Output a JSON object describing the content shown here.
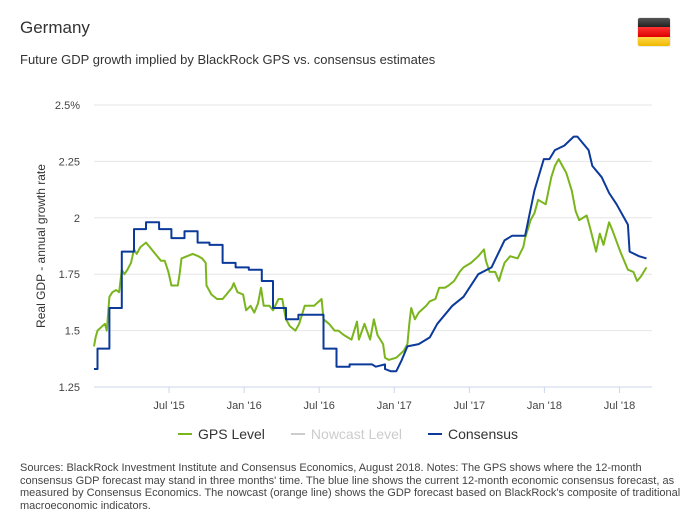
{
  "header": {
    "title": "Germany",
    "subtitle": "Future GDP growth implied by BlackRock GPS vs. consensus estimates",
    "flag_icon": "germany-flag-icon"
  },
  "colors": {
    "gps": "#7ab51d",
    "nowcast": "#cccccc",
    "consensus": "#0b3a9a",
    "grid": "#e6e6e6"
  },
  "chart_data": {
    "type": "line",
    "title": "Future GDP growth implied by BlackRock GPS vs. consensus estimates",
    "xlabel": "",
    "ylabel": "Real GDP - annual growth rate",
    "x_unit": "months since Jan 2015",
    "xlim": [
      0,
      44.6
    ],
    "ylim": [
      1.25,
      2.5
    ],
    "yticks": [
      {
        "v": 1.25,
        "label": "1.25"
      },
      {
        "v": 1.5,
        "label": "1.5"
      },
      {
        "v": 1.75,
        "label": "1.75"
      },
      {
        "v": 2,
        "label": "2"
      },
      {
        "v": 2.25,
        "label": "2.25"
      },
      {
        "v": 2.5,
        "label": "2.5%"
      }
    ],
    "xticks": [
      {
        "v": 6,
        "label": "Jul '15"
      },
      {
        "v": 12,
        "label": "Jan '16"
      },
      {
        "v": 18,
        "label": "Jul '16"
      },
      {
        "v": 24,
        "label": "Jan '17"
      },
      {
        "v": 30,
        "label": "Jul '17"
      },
      {
        "v": 36,
        "label": "Jan '18"
      },
      {
        "v": 42,
        "label": "Jul '18"
      }
    ],
    "grid": true,
    "legend_position": "bottom",
    "series": [
      {
        "name": "GPS Level",
        "key": "gps",
        "visible": true,
        "points": [
          [
            0,
            1.43
          ],
          [
            0.13,
            1.47
          ],
          [
            0.28,
            1.5
          ],
          [
            0.87,
            1.53
          ],
          [
            1.02,
            1.5
          ],
          [
            1.23,
            1.65
          ],
          [
            1.47,
            1.67
          ],
          [
            1.77,
            1.68
          ],
          [
            2.01,
            1.67
          ],
          [
            2.22,
            1.77
          ],
          [
            2.43,
            1.75
          ],
          [
            2.67,
            1.77
          ],
          [
            2.96,
            1.8
          ],
          [
            3.2,
            1.86
          ],
          [
            3.41,
            1.84
          ],
          [
            3.71,
            1.87
          ],
          [
            4.16,
            1.89
          ],
          [
            4.46,
            1.87
          ],
          [
            4.9,
            1.84
          ],
          [
            5.35,
            1.81
          ],
          [
            5.65,
            1.81
          ],
          [
            5.95,
            1.76
          ],
          [
            6.19,
            1.7
          ],
          [
            6.7,
            1.7
          ],
          [
            6.84,
            1.75
          ],
          [
            6.99,
            1.82
          ],
          [
            7.44,
            1.83
          ],
          [
            7.89,
            1.84
          ],
          [
            8.34,
            1.83
          ],
          [
            8.64,
            1.82
          ],
          [
            8.93,
            1.8
          ],
          [
            8.99,
            1.7
          ],
          [
            9.38,
            1.66
          ],
          [
            9.83,
            1.64
          ],
          [
            10.28,
            1.64
          ],
          [
            10.58,
            1.66
          ],
          [
            11.02,
            1.69
          ],
          [
            11.17,
            1.71
          ],
          [
            11.47,
            1.67
          ],
          [
            11.92,
            1.66
          ],
          [
            12.16,
            1.59
          ],
          [
            12.52,
            1.61
          ],
          [
            12.81,
            1.58
          ],
          [
            13.11,
            1.62
          ],
          [
            13.35,
            1.69
          ],
          [
            13.56,
            1.61
          ],
          [
            14.01,
            1.61
          ],
          [
            14.31,
            1.59
          ],
          [
            14.75,
            1.64
          ],
          [
            15.05,
            1.64
          ],
          [
            15.2,
            1.59
          ],
          [
            15.35,
            1.55
          ],
          [
            15.65,
            1.52
          ],
          [
            16.1,
            1.5
          ],
          [
            16.4,
            1.53
          ],
          [
            16.84,
            1.61
          ],
          [
            17.59,
            1.61
          ],
          [
            18.19,
            1.64
          ],
          [
            18.34,
            1.55
          ],
          [
            18.78,
            1.53
          ],
          [
            19.23,
            1.5
          ],
          [
            19.53,
            1.5
          ],
          [
            19.98,
            1.48
          ],
          [
            20.58,
            1.46
          ],
          [
            21.02,
            1.54
          ],
          [
            21.17,
            1.46
          ],
          [
            21.62,
            1.53
          ],
          [
            22.07,
            1.46
          ],
          [
            22.37,
            1.55
          ],
          [
            22.66,
            1.48
          ],
          [
            23.11,
            1.44
          ],
          [
            23.26,
            1.38
          ],
          [
            23.56,
            1.37
          ],
          [
            24.16,
            1.38
          ],
          [
            24.75,
            1.41
          ],
          [
            25.05,
            1.44
          ],
          [
            25.2,
            1.53
          ],
          [
            25.35,
            1.6
          ],
          [
            25.65,
            1.55
          ],
          [
            25.95,
            1.58
          ],
          [
            26.55,
            1.61
          ],
          [
            26.84,
            1.63
          ],
          [
            27.29,
            1.64
          ],
          [
            27.59,
            1.69
          ],
          [
            28.04,
            1.69
          ],
          [
            28.34,
            1.7
          ],
          [
            28.78,
            1.72
          ],
          [
            29.23,
            1.76
          ],
          [
            29.53,
            1.78
          ],
          [
            30.13,
            1.8
          ],
          [
            30.72,
            1.83
          ],
          [
            31.17,
            1.86
          ],
          [
            31.32,
            1.81
          ],
          [
            31.62,
            1.76
          ],
          [
            32.07,
            1.76
          ],
          [
            32.37,
            1.72
          ],
          [
            32.52,
            1.75
          ],
          [
            32.81,
            1.8
          ],
          [
            33.26,
            1.83
          ],
          [
            33.86,
            1.82
          ],
          [
            34.31,
            1.87
          ],
          [
            34.46,
            1.91
          ],
          [
            34.9,
            1.99
          ],
          [
            35.2,
            2.02
          ],
          [
            35.5,
            2.08
          ],
          [
            36.1,
            2.06
          ],
          [
            36.55,
            2.18
          ],
          [
            36.84,
            2.23
          ],
          [
            37.14,
            2.26
          ],
          [
            37.44,
            2.23
          ],
          [
            37.74,
            2.2
          ],
          [
            38.19,
            2.12
          ],
          [
            38.49,
            2.03
          ],
          [
            38.78,
            1.99
          ],
          [
            39.38,
            2.01
          ],
          [
            39.68,
            1.95
          ],
          [
            40.13,
            1.85
          ],
          [
            40.43,
            1.93
          ],
          [
            40.72,
            1.88
          ],
          [
            41.17,
            1.98
          ],
          [
            41.47,
            1.94
          ],
          [
            42.07,
            1.85
          ],
          [
            42.67,
            1.77
          ],
          [
            43.11,
            1.76
          ],
          [
            43.41,
            1.72
          ],
          [
            43.71,
            1.74
          ],
          [
            44.16,
            1.78
          ]
        ]
      },
      {
        "name": "Nowcast Level",
        "key": "nowcast",
        "visible": false,
        "points": []
      },
      {
        "name": "Consensus",
        "key": "consensus",
        "visible": true,
        "points": [
          [
            0,
            1.33
          ],
          [
            0.28,
            1.33
          ],
          [
            0.28,
            1.42
          ],
          [
            1.23,
            1.42
          ],
          [
            1.23,
            1.6
          ],
          [
            2.22,
            1.6
          ],
          [
            2.22,
            1.85
          ],
          [
            3.2,
            1.85
          ],
          [
            3.2,
            1.95
          ],
          [
            4.16,
            1.95
          ],
          [
            4.16,
            1.98
          ],
          [
            5.2,
            1.98
          ],
          [
            5.2,
            1.95
          ],
          [
            6.19,
            1.95
          ],
          [
            6.19,
            1.91
          ],
          [
            7.23,
            1.91
          ],
          [
            7.23,
            1.94
          ],
          [
            8.28,
            1.94
          ],
          [
            8.28,
            1.89
          ],
          [
            9.23,
            1.89
          ],
          [
            9.23,
            1.88
          ],
          [
            10.28,
            1.88
          ],
          [
            10.28,
            1.8
          ],
          [
            11.32,
            1.8
          ],
          [
            11.32,
            1.78
          ],
          [
            12.37,
            1.78
          ],
          [
            12.37,
            1.77
          ],
          [
            13.41,
            1.77
          ],
          [
            13.41,
            1.72
          ],
          [
            14.31,
            1.72
          ],
          [
            14.31,
            1.6
          ],
          [
            15.35,
            1.6
          ],
          [
            15.35,
            1.55
          ],
          [
            16.34,
            1.55
          ],
          [
            16.34,
            1.57
          ],
          [
            18.34,
            1.57
          ],
          [
            18.34,
            1.42
          ],
          [
            19.38,
            1.42
          ],
          [
            19.38,
            1.34
          ],
          [
            20.43,
            1.34
          ],
          [
            20.43,
            1.35
          ],
          [
            22.22,
            1.35
          ],
          [
            22.52,
            1.34
          ],
          [
            23.26,
            1.35
          ],
          [
            23.26,
            1.33
          ],
          [
            23.71,
            1.32
          ],
          [
            24.16,
            1.32
          ],
          [
            24.6,
            1.37
          ],
          [
            25.05,
            1.43
          ],
          [
            25.95,
            1.44
          ],
          [
            26.84,
            1.47
          ],
          [
            27.44,
            1.53
          ],
          [
            28.64,
            1.61
          ],
          [
            29.53,
            1.65
          ],
          [
            30.72,
            1.75
          ],
          [
            31.77,
            1.78
          ],
          [
            32.81,
            1.9
          ],
          [
            33.41,
            1.92
          ],
          [
            34.46,
            1.92
          ],
          [
            35.2,
            2.12
          ],
          [
            35.95,
            2.26
          ],
          [
            36.4,
            2.26
          ],
          [
            36.84,
            2.3
          ],
          [
            37.59,
            2.32
          ],
          [
            38.34,
            2.36
          ],
          [
            38.64,
            2.36
          ],
          [
            39.53,
            2.3
          ],
          [
            39.83,
            2.23
          ],
          [
            40.58,
            2.18
          ],
          [
            41.17,
            2.11
          ],
          [
            41.77,
            2.06
          ],
          [
            42.67,
            1.97
          ],
          [
            42.81,
            1.85
          ],
          [
            43.56,
            1.83
          ],
          [
            44.16,
            1.82
          ]
        ]
      }
    ]
  },
  "legend": {
    "items": [
      {
        "label": "GPS Level"
      },
      {
        "label": "Nowcast Level"
      },
      {
        "label": "Consensus"
      }
    ]
  },
  "notes": "Sources: BlackRock Investment Institute and Consensus Economics, August 2018. Notes: The GPS shows where the 12-month consensus GDP forecast may stand in three months' time. The blue line shows the current 12-month economic consensus forecast, as measured by Consensus Economics. The nowcast (orange line) shows the GDP forecast based on BlackRock's composite of traditional macroeconomic indicators."
}
